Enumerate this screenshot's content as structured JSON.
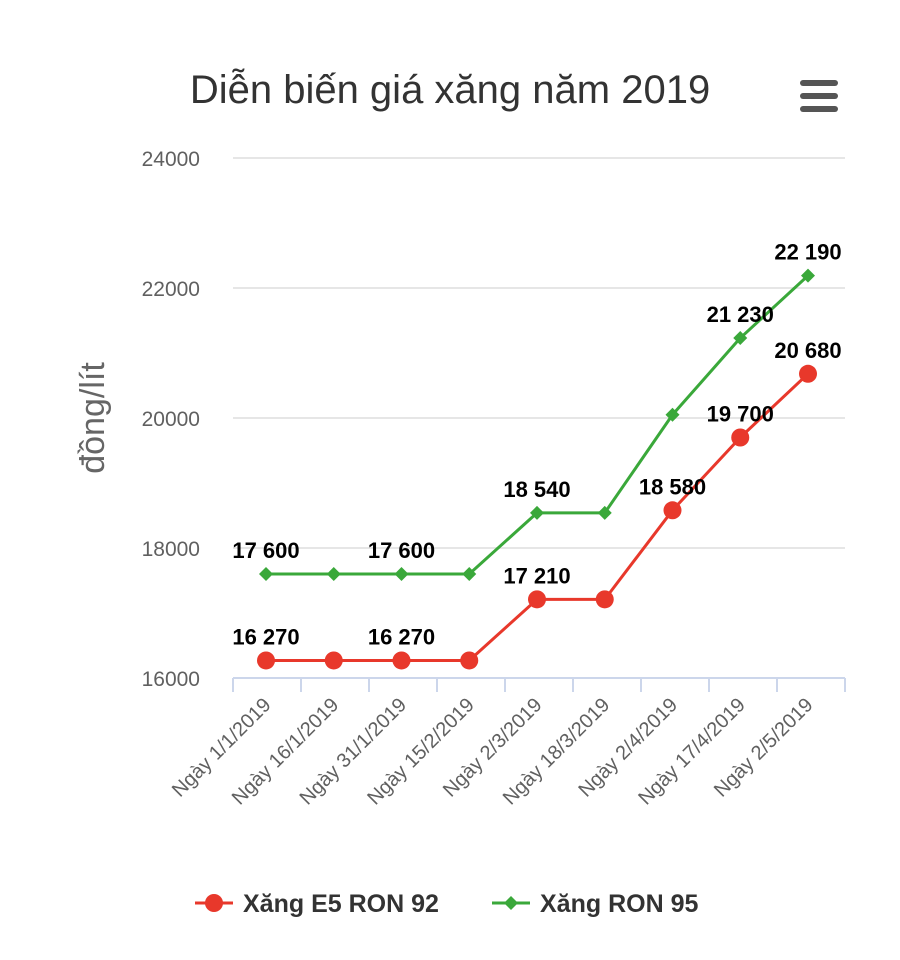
{
  "chart_data": {
    "type": "line",
    "title": "Diễn biến giá xăng năm 2019",
    "ylabel": "đồng/lít",
    "xlabel": "",
    "ylim": [
      16000,
      24000
    ],
    "yticks": [
      "16000",
      "18000",
      "20000",
      "22000",
      "24000"
    ],
    "categories": [
      "Ngày 1/1/2019",
      "Ngày 16/1/2019",
      "Ngày 31/1/2019",
      "Ngày 15/2/2019",
      "Ngày 2/3/2019",
      "Ngày 18/3/2019",
      "Ngày 2/4/2019",
      "Ngày 17/4/2019",
      "Ngày 2/5/2019"
    ],
    "grid": true,
    "legend": "bottom",
    "series": [
      {
        "name": "Xăng E5 RON 92",
        "color": "#e8382b",
        "marker": "circle",
        "values": [
          16270,
          16270,
          16270,
          16270,
          17210,
          17210,
          18580,
          19700,
          20680
        ],
        "data_labels": [
          "16 270",
          "",
          "16 270",
          "",
          "17 210",
          "",
          "18 580",
          "19 700",
          "20 680"
        ]
      },
      {
        "name": "Xăng RON 95",
        "color": "#3aa83a",
        "marker": "diamond",
        "values": [
          17600,
          17600,
          17600,
          17600,
          18540,
          18540,
          20050,
          21230,
          22190
        ],
        "data_labels": [
          "17 600",
          "",
          "17 600",
          "",
          "18 540",
          "",
          "",
          "21 230",
          "22 190"
        ]
      }
    ]
  },
  "menu_icon": "hamburger-menu-icon"
}
